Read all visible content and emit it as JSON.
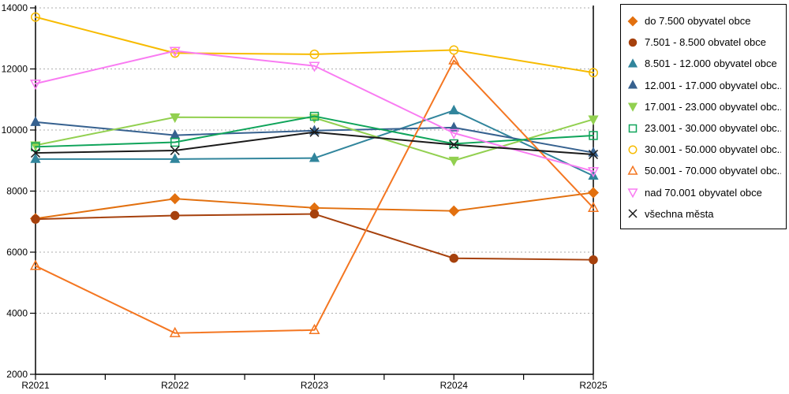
{
  "chart_data": {
    "type": "line",
    "title": "",
    "categories": [
      "R2021",
      "R2022",
      "R2023",
      "R2024",
      "R2025"
    ],
    "series": [
      {
        "label": "do 7.500 obyvatel obce",
        "color": "#E2700F",
        "marker": "diamond",
        "marker_style": "filled",
        "values": [
          7100,
          7750,
          7450,
          7350,
          7950
        ]
      },
      {
        "label": "7.501 - 8.500 obvatel obce",
        "color": "#A6410D",
        "marker": "circle",
        "marker_style": "filled",
        "values": [
          7080,
          7200,
          7250,
          5800,
          5750
        ]
      },
      {
        "label": "8.501 - 12.000 obyvatel obce",
        "color": "#31859C",
        "marker": "triangle-up",
        "marker_style": "filled",
        "values": [
          9050,
          9050,
          9080,
          10640,
          8500
        ]
      },
      {
        "label": "12.001 - 17.000 obyvatel obc...",
        "color": "#36618F",
        "marker": "triangle-up",
        "marker_style": "filled",
        "values": [
          10260,
          9830,
          9980,
          10080,
          9260
        ]
      },
      {
        "label": "17.001 - 23.000 obyvatel obc...",
        "color": "#92D050",
        "marker": "triangle-down",
        "marker_style": "filled",
        "values": [
          9500,
          10420,
          10400,
          9000,
          10350
        ]
      },
      {
        "label": "23.001 - 30.000 obyvatel obc...",
        "color": "#0FA45A",
        "marker": "square",
        "marker_style": "outline",
        "values": [
          9450,
          9600,
          10450,
          9550,
          9820
        ]
      },
      {
        "label": "30.001 - 50.000 obyvatel obc...",
        "color": "#F7BB00",
        "marker": "circle",
        "marker_style": "outline",
        "values": [
          13700,
          12520,
          12480,
          12620,
          11880
        ]
      },
      {
        "label": "50.001 - 70.000 obyvatel obc...",
        "color": "#F47621",
        "marker": "triangle-up",
        "marker_style": "outline",
        "values": [
          5550,
          3350,
          3450,
          12280,
          7450
        ]
      },
      {
        "label": "nad 70.001 obyvatel obce",
        "color": "#F97BF2",
        "marker": "triangle-down",
        "marker_style": "outline",
        "values": [
          11520,
          12590,
          12100,
          9900,
          8650
        ]
      },
      {
        "label": "všechna města",
        "color": "#1A1A1A",
        "marker": "x",
        "marker_style": "stroke",
        "values": [
          9250,
          9330,
          9930,
          9520,
          9200
        ]
      }
    ],
    "xlabel": "",
    "ylabel": "",
    "ylim": [
      2000,
      14000
    ],
    "y_ticks": [
      2000,
      4000,
      6000,
      8000,
      10000,
      12000,
      14000
    ],
    "y_tick_labels": [
      "2000",
      "4000",
      "6000",
      "8000",
      "10000",
      "12000",
      "14000"
    ],
    "grid": "horizontal-dotted",
    "grid_color": "#ADADAD",
    "axis_color": "#000000",
    "legend_position": "right"
  }
}
